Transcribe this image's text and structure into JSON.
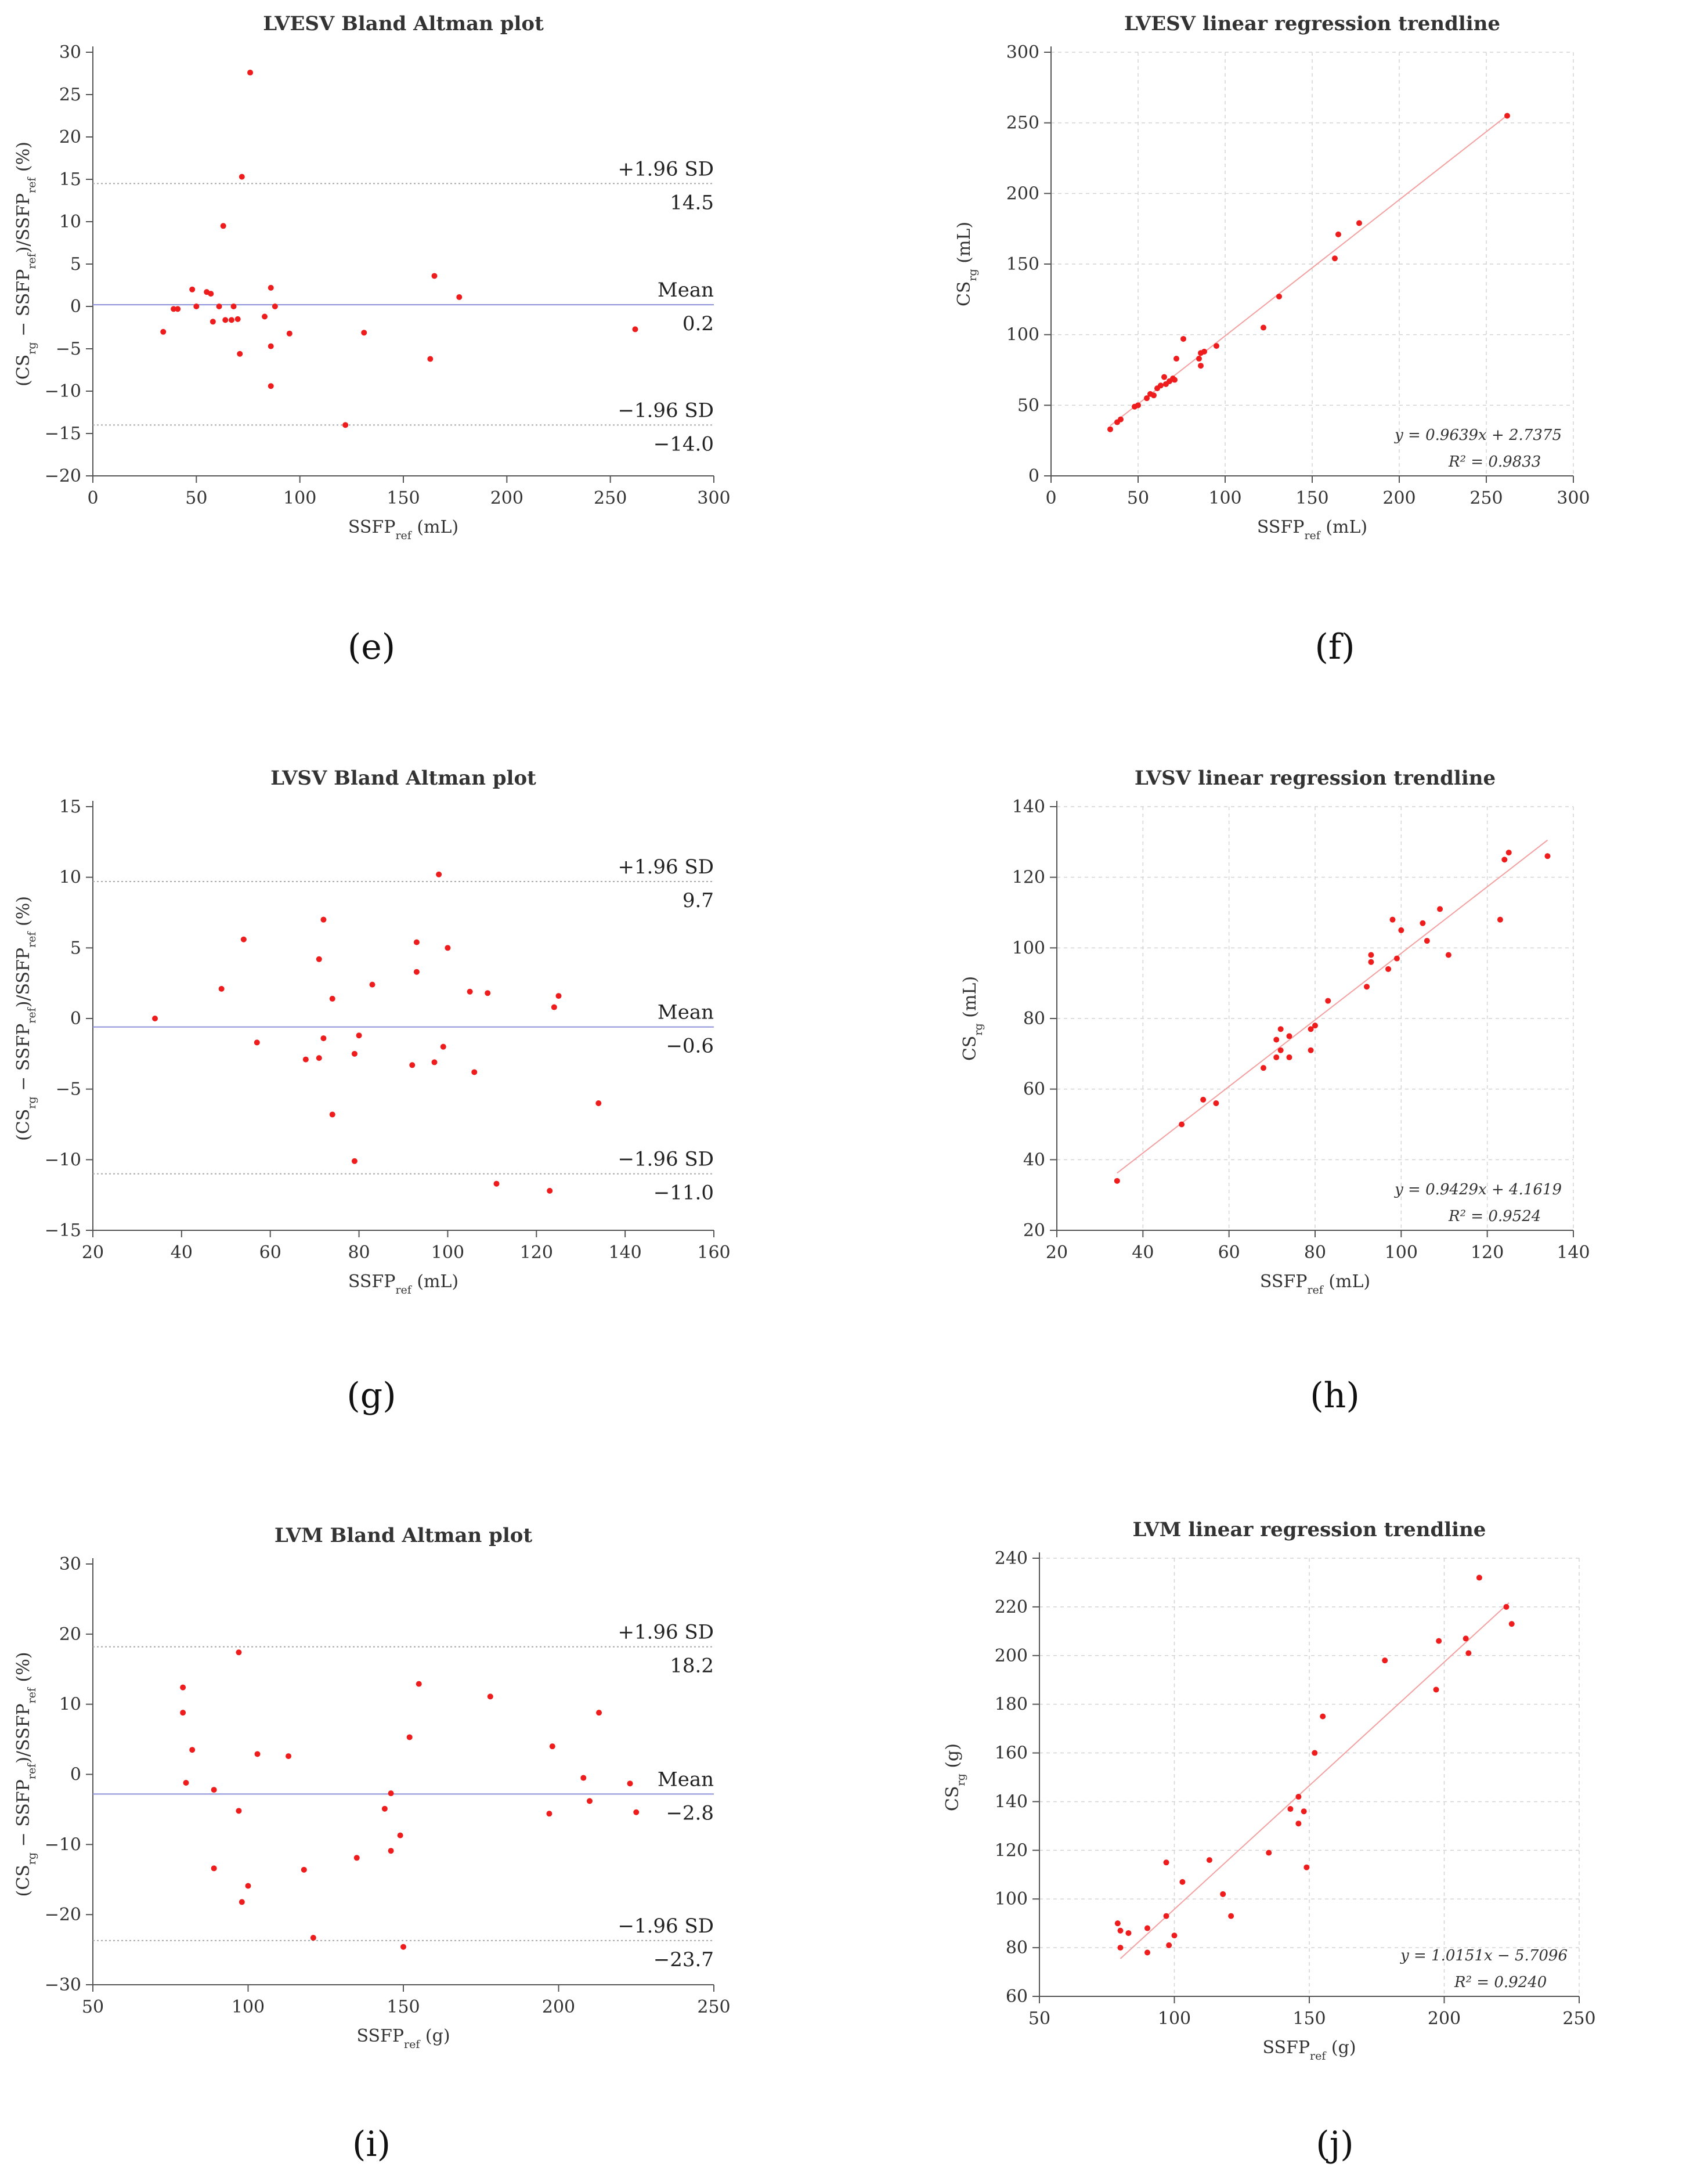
{
  "panels": [
    {
      "label": "(e)",
      "chart_data": {
        "type": "scatter",
        "kind": "bland-altman",
        "title": "LVESV Bland Altman plot",
        "xlabel": "SSFPref (mL)",
        "ylabel": "(CSrg − SSFPref)/SSFPref (%)",
        "xlim": [
          0,
          300
        ],
        "ylim": [
          -20,
          30
        ],
        "xticks": [
          0,
          50,
          100,
          150,
          200,
          250,
          300
        ],
        "yticks": [
          -20,
          -15,
          -10,
          -5,
          0,
          5,
          10,
          15,
          20,
          25,
          30
        ],
        "lines": [
          {
            "name": "+1.96 SD",
            "value": 14.5,
            "label": "+1.96 SD",
            "value_label": "14.5"
          },
          {
            "name": "Mean",
            "value": 0.2,
            "label": "Mean",
            "value_label": "0.2"
          },
          {
            "name": "−1.96 SD",
            "value": -14.0,
            "label": "−1.96 SD",
            "value_label": "−14.0"
          }
        ],
        "points": [
          [
            34,
            -3
          ],
          [
            39,
            -0.3
          ],
          [
            41,
            -0.3
          ],
          [
            48,
            2
          ],
          [
            50,
            0
          ],
          [
            55,
            1.7
          ],
          [
            57,
            1.5
          ],
          [
            58,
            -1.8
          ],
          [
            61,
            0
          ],
          [
            63,
            9.5
          ],
          [
            64,
            -1.6
          ],
          [
            67,
            -1.6
          ],
          [
            68,
            0
          ],
          [
            70,
            -1.5
          ],
          [
            71,
            -5.6
          ],
          [
            72,
            15.3
          ],
          [
            76,
            27.6
          ],
          [
            83,
            -1.2
          ],
          [
            86,
            2.2
          ],
          [
            86,
            -4.7
          ],
          [
            86,
            -9.4
          ],
          [
            88,
            0
          ],
          [
            95,
            -3.2
          ],
          [
            122,
            -14
          ],
          [
            131,
            -3.1
          ],
          [
            163,
            -6.2
          ],
          [
            165,
            3.6
          ],
          [
            177,
            1.1
          ],
          [
            262,
            -2.7
          ]
        ]
      }
    },
    {
      "label": "(f)",
      "chart_data": {
        "type": "scatter",
        "kind": "regression",
        "title": "LVESV linear regression trendline",
        "xlabel": "SSFPref (mL)",
        "ylabel": "CSrg (mL)",
        "xlim": [
          0,
          300
        ],
        "ylim": [
          0,
          300
        ],
        "xticks": [
          0,
          50,
          100,
          150,
          200,
          250,
          300
        ],
        "yticks": [
          0,
          50,
          100,
          150,
          200,
          250,
          300
        ],
        "slope": 0.9639,
        "intercept": 2.7375,
        "fit_x": [
          34,
          262
        ],
        "equation": "y = 0.9639x + 2.7375",
        "r2": "R² = 0.9833",
        "points": [
          [
            34,
            33
          ],
          [
            38,
            38
          ],
          [
            40,
            40
          ],
          [
            48,
            49
          ],
          [
            50,
            50
          ],
          [
            55,
            55
          ],
          [
            57,
            58
          ],
          [
            59,
            57
          ],
          [
            61,
            62
          ],
          [
            63,
            64
          ],
          [
            65,
            70
          ],
          [
            66,
            65
          ],
          [
            68,
            67
          ],
          [
            70,
            69
          ],
          [
            71,
            68
          ],
          [
            72,
            83
          ],
          [
            76,
            97
          ],
          [
            85,
            83
          ],
          [
            86,
            87
          ],
          [
            86,
            78
          ],
          [
            88,
            88
          ],
          [
            95,
            92
          ],
          [
            122,
            105
          ],
          [
            131,
            127
          ],
          [
            163,
            154
          ],
          [
            165,
            171
          ],
          [
            177,
            179
          ],
          [
            262,
            255
          ]
        ]
      }
    },
    {
      "label": "(g)",
      "chart_data": {
        "type": "scatter",
        "kind": "bland-altman",
        "title": "LVSV Bland Altman plot",
        "xlabel": "SSFPref (mL)",
        "ylabel": "(CSrg − SSFPref)/SSFPref (%)",
        "xlim": [
          20,
          160
        ],
        "ylim": [
          -15,
          15
        ],
        "xticks": [
          20,
          40,
          60,
          80,
          100,
          120,
          140,
          160
        ],
        "yticks": [
          -15,
          -10,
          -5,
          0,
          5,
          10,
          15
        ],
        "lines": [
          {
            "name": "+1.96 SD",
            "value": 9.7,
            "label": "+1.96 SD",
            "value_label": "9.7"
          },
          {
            "name": "Mean",
            "value": -0.6,
            "label": "Mean",
            "value_label": "−0.6"
          },
          {
            "name": "−1.96 SD",
            "value": -11.0,
            "label": "−1.96 SD",
            "value_label": "−11.0"
          }
        ],
        "points": [
          [
            34,
            0
          ],
          [
            49,
            2.1
          ],
          [
            54,
            5.6
          ],
          [
            57,
            -1.7
          ],
          [
            68,
            -2.9
          ],
          [
            71,
            4.2
          ],
          [
            71,
            -2.8
          ],
          [
            72,
            7
          ],
          [
            72,
            -1.4
          ],
          [
            74,
            1.4
          ],
          [
            74,
            -6.8
          ],
          [
            79,
            -2.5
          ],
          [
            79,
            -10.1
          ],
          [
            80,
            -1.2
          ],
          [
            83,
            2.4
          ],
          [
            92,
            -3.3
          ],
          [
            93,
            5.4
          ],
          [
            93,
            3.3
          ],
          [
            97,
            -3.1
          ],
          [
            98,
            10.2
          ],
          [
            99,
            -2
          ],
          [
            100,
            5
          ],
          [
            105,
            1.9
          ],
          [
            106,
            -3.8
          ],
          [
            109,
            1.8
          ],
          [
            111,
            -11.7
          ],
          [
            123,
            -12.2
          ],
          [
            124,
            0.8
          ],
          [
            125,
            1.6
          ],
          [
            134,
            -6
          ]
        ]
      }
    },
    {
      "label": "(h)",
      "chart_data": {
        "type": "scatter",
        "kind": "regression",
        "title": "LVSV linear regression trendline",
        "xlabel": "SSFPref (mL)",
        "ylabel": "CSrg (mL)",
        "xlim": [
          20,
          140
        ],
        "ylim": [
          20,
          140
        ],
        "xticks": [
          20,
          40,
          60,
          80,
          100,
          120,
          140
        ],
        "yticks": [
          20,
          40,
          60,
          80,
          100,
          120,
          140
        ],
        "slope": 0.9429,
        "intercept": 4.1619,
        "fit_x": [
          34,
          134
        ],
        "equation": "y = 0.9429x + 4.1619",
        "r2": "R² = 0.9524",
        "points": [
          [
            34,
            34
          ],
          [
            49,
            50
          ],
          [
            54,
            57
          ],
          [
            57,
            56
          ],
          [
            68,
            66
          ],
          [
            71,
            69
          ],
          [
            71,
            74
          ],
          [
            72,
            77
          ],
          [
            72,
            71
          ],
          [
            74,
            75
          ],
          [
            74,
            69
          ],
          [
            79,
            71
          ],
          [
            79,
            77
          ],
          [
            80,
            78
          ],
          [
            83,
            85
          ],
          [
            92,
            89
          ],
          [
            93,
            98
          ],
          [
            93,
            96
          ],
          [
            97,
            94
          ],
          [
            98,
            108
          ],
          [
            99,
            97
          ],
          [
            100,
            105
          ],
          [
            105,
            107
          ],
          [
            106,
            102
          ],
          [
            109,
            111
          ],
          [
            111,
            98
          ],
          [
            123,
            108
          ],
          [
            124,
            125
          ],
          [
            125,
            127
          ],
          [
            134,
            126
          ]
        ]
      }
    },
    {
      "label": "(i)",
      "chart_data": {
        "type": "scatter",
        "kind": "bland-altman",
        "title": "LVM Bland Altman plot",
        "xlabel": "SSFPref (g)",
        "ylabel": "(CSrg − SSFPref)/SSFPref (%)",
        "xlim": [
          50,
          250
        ],
        "ylim": [
          -30,
          30
        ],
        "xticks": [
          50,
          100,
          150,
          200,
          250
        ],
        "yticks": [
          -30,
          -20,
          -10,
          0,
          10,
          20,
          30
        ],
        "lines": [
          {
            "name": "+1.96 SD",
            "value": 18.2,
            "label": "+1.96 SD",
            "value_label": "18.2"
          },
          {
            "name": "Mean",
            "value": -2.8,
            "label": "Mean",
            "value_label": "−2.8"
          },
          {
            "name": "−1.96 SD",
            "value": -23.7,
            "label": "−1.96 SD",
            "value_label": "−23.7"
          }
        ],
        "points": [
          [
            79,
            12.4
          ],
          [
            79,
            8.8
          ],
          [
            80,
            -1.2
          ],
          [
            82,
            3.5
          ],
          [
            89,
            -2.2
          ],
          [
            89,
            -13.4
          ],
          [
            97,
            17.4
          ],
          [
            97,
            -5.2
          ],
          [
            98,
            -18.2
          ],
          [
            100,
            -15.9
          ],
          [
            103,
            2.9
          ],
          [
            113,
            2.6
          ],
          [
            118,
            -13.6
          ],
          [
            121,
            -23.3
          ],
          [
            135,
            -11.9
          ],
          [
            144,
            -4.9
          ],
          [
            146,
            -2.7
          ],
          [
            146,
            -10.9
          ],
          [
            149,
            -8.7
          ],
          [
            150,
            -24.6
          ],
          [
            152,
            5.3
          ],
          [
            155,
            12.9
          ],
          [
            178,
            11.1
          ],
          [
            197,
            -5.6
          ],
          [
            198,
            4
          ],
          [
            208,
            -0.5
          ],
          [
            210,
            -3.8
          ],
          [
            213,
            8.8
          ],
          [
            223,
            -1.3
          ],
          [
            225,
            -5.4
          ]
        ]
      }
    },
    {
      "label": "(j)",
      "chart_data": {
        "type": "scatter",
        "kind": "regression",
        "title": "LVM linear regression trendline",
        "xlabel": "SSFPref (g)",
        "ylabel": "CSrg (g)",
        "xlim": [
          50,
          250
        ],
        "ylim": [
          60,
          240
        ],
        "xticks": [
          50,
          100,
          150,
          200,
          250
        ],
        "yticks": [
          60,
          80,
          100,
          120,
          140,
          160,
          180,
          200,
          220,
          240
        ],
        "slope": 1.0151,
        "intercept": -5.7096,
        "fit_x": [
          80,
          224
        ],
        "equation": "y = 1.0151x − 5.7096",
        "r2": "R² = 0.9240",
        "points": [
          [
            79,
            90
          ],
          [
            80,
            87
          ],
          [
            80,
            80
          ],
          [
            83,
            86
          ],
          [
            90,
            88
          ],
          [
            90,
            78
          ],
          [
            97,
            115
          ],
          [
            97,
            93
          ],
          [
            98,
            81
          ],
          [
            100,
            85
          ],
          [
            103,
            107
          ],
          [
            113,
            116
          ],
          [
            118,
            102
          ],
          [
            121,
            93
          ],
          [
            135,
            119
          ],
          [
            143,
            137
          ],
          [
            146,
            142
          ],
          [
            146,
            131
          ],
          [
            148,
            136
          ],
          [
            149,
            113
          ],
          [
            152,
            160
          ],
          [
            155,
            175
          ],
          [
            178,
            198
          ],
          [
            197,
            186
          ],
          [
            198,
            206
          ],
          [
            208,
            207
          ],
          [
            209,
            201
          ],
          [
            213,
            232
          ],
          [
            223,
            220
          ],
          [
            225,
            213
          ]
        ]
      }
    }
  ]
}
